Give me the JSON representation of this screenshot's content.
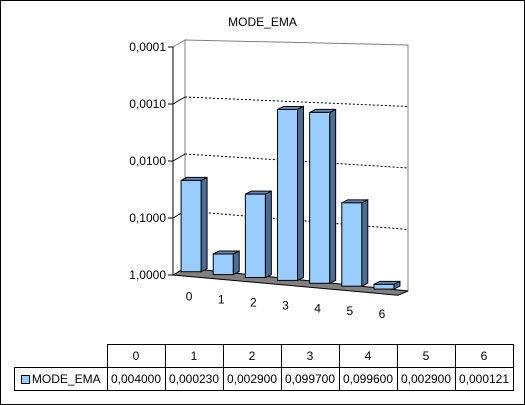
{
  "chart_data": {
    "type": "bar",
    "title": "MODE_EMA",
    "categories": [
      "0",
      "1",
      "2",
      "3",
      "4",
      "5",
      "6"
    ],
    "series": [
      {
        "name": "MODE_EMA",
        "values": [
          0.004,
          0.00023,
          0.0029,
          0.0997,
          0.0996,
          0.0029,
          0.000121
        ]
      }
    ],
    "y_scale": "log",
    "y_axis_reversed": true,
    "y_ticks": [
      "0,0001",
      "0,0010",
      "0,0100",
      "0,1000",
      "1,0000"
    ],
    "ylim": [
      0.0001,
      1
    ],
    "grid": true,
    "bar_color": "#99ccff",
    "floor_color": "#808080",
    "table": {
      "header": [
        "0",
        "1",
        "2",
        "3",
        "4",
        "5",
        "6"
      ],
      "row_label": "MODE_EMA",
      "values": [
        "0,004000",
        "0,000230",
        "0,002900",
        "0,099700",
        "0,099600",
        "0,002900",
        "0,000121"
      ]
    }
  }
}
